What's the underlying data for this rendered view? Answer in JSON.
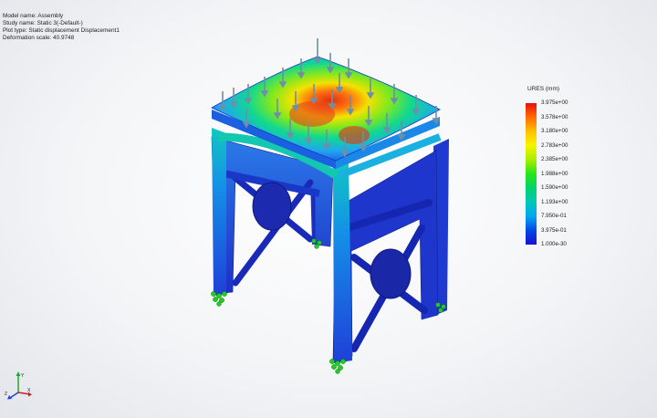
{
  "info": {
    "model_name": "Model name: Assembly",
    "study_name": "Study name: Static 3(-Default-)",
    "plot_type": "Plot type: Static displacement Displacement1",
    "deformation_scale": "Deformation scale: 40.9748"
  },
  "legend": {
    "title": "URES (mm)",
    "labels": [
      "3.975e+00",
      "3.578e+00",
      "3.180e+00",
      "2.783e+00",
      "2.385e+00",
      "1.988e+00",
      "1.590e+00",
      "1.193e+00",
      "7.950e-01",
      "3.975e-01",
      "1.000e-30"
    ]
  },
  "triad": {
    "x_label": "X",
    "y_label": "Y",
    "z_label": "Z"
  },
  "colors": {
    "max": "#e81010",
    "min": "#1a10d0",
    "frame": "#1a3fd0",
    "fixture": "#22cc22",
    "load": "#6e8fa8"
  }
}
